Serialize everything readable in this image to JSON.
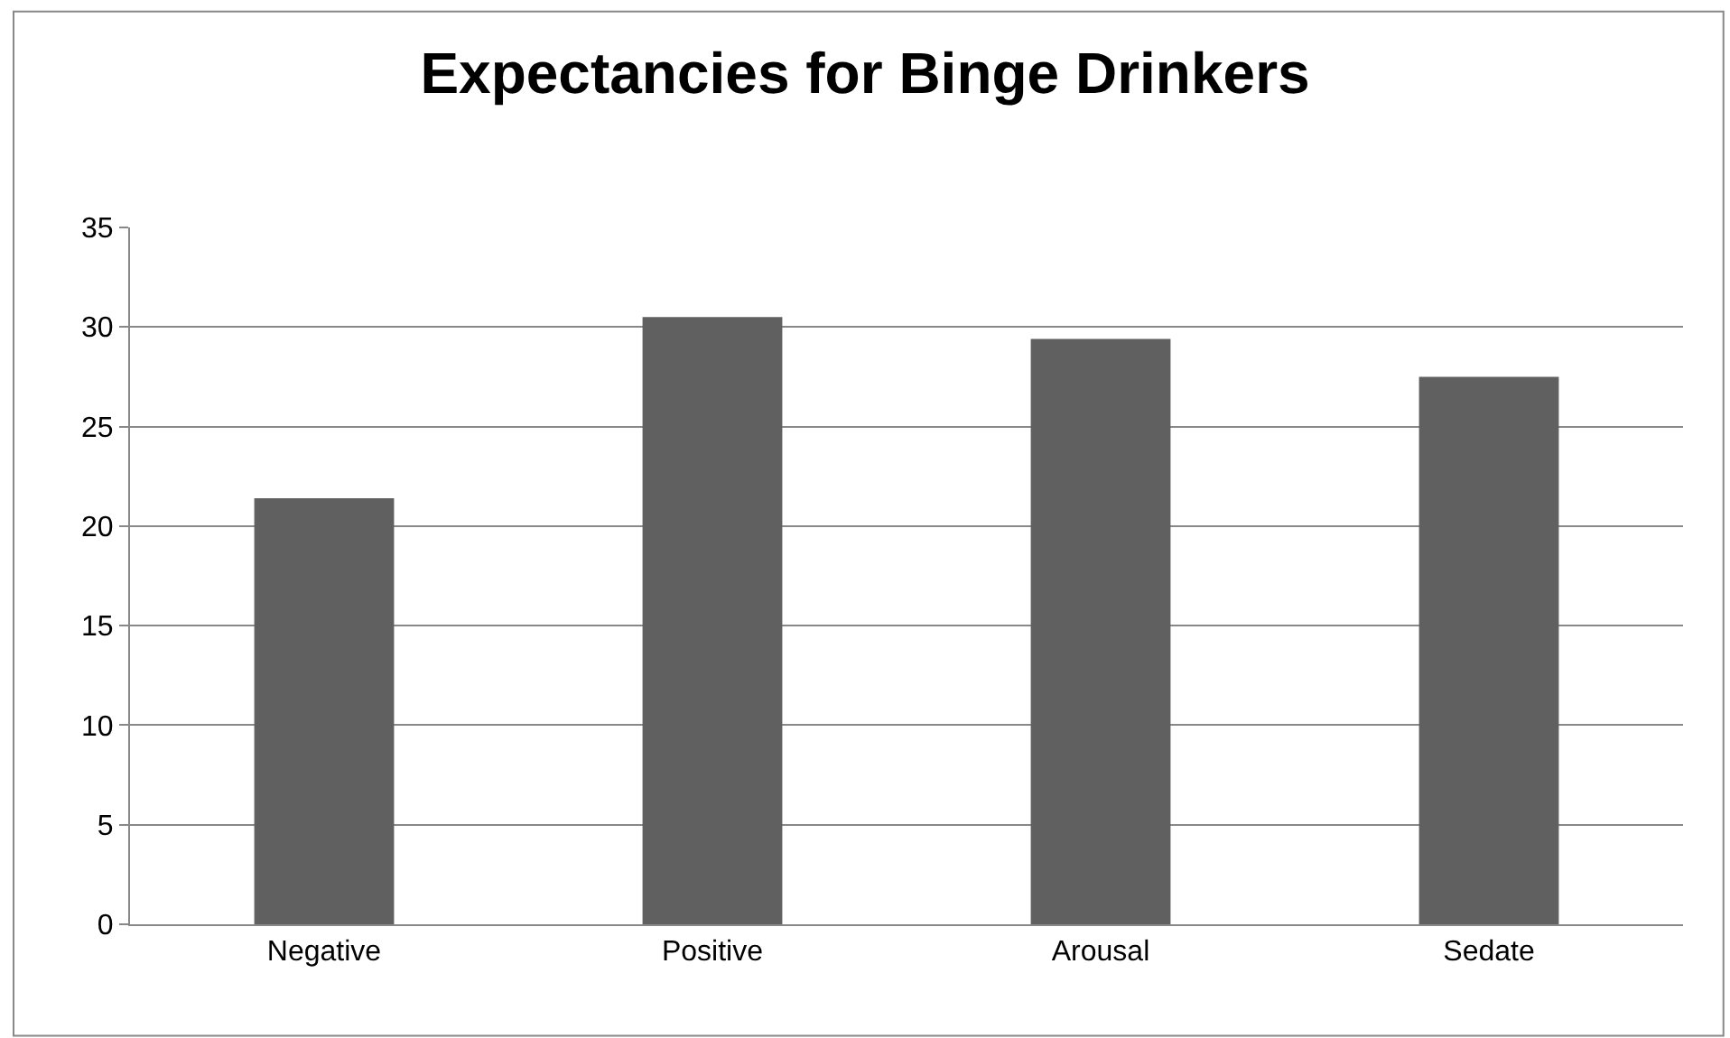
{
  "chart_data": {
    "type": "bar",
    "title": "Expectancies for Binge Drinkers",
    "categories": [
      "Negative",
      "Positive",
      "Arousal",
      "Sedate"
    ],
    "values": [
      21.4,
      30.5,
      29.4,
      27.5
    ],
    "color": "#606060",
    "ylim": [
      0,
      35
    ],
    "yticks": [
      0,
      5,
      10,
      15,
      20,
      25,
      30,
      35
    ],
    "grid": "y"
  }
}
